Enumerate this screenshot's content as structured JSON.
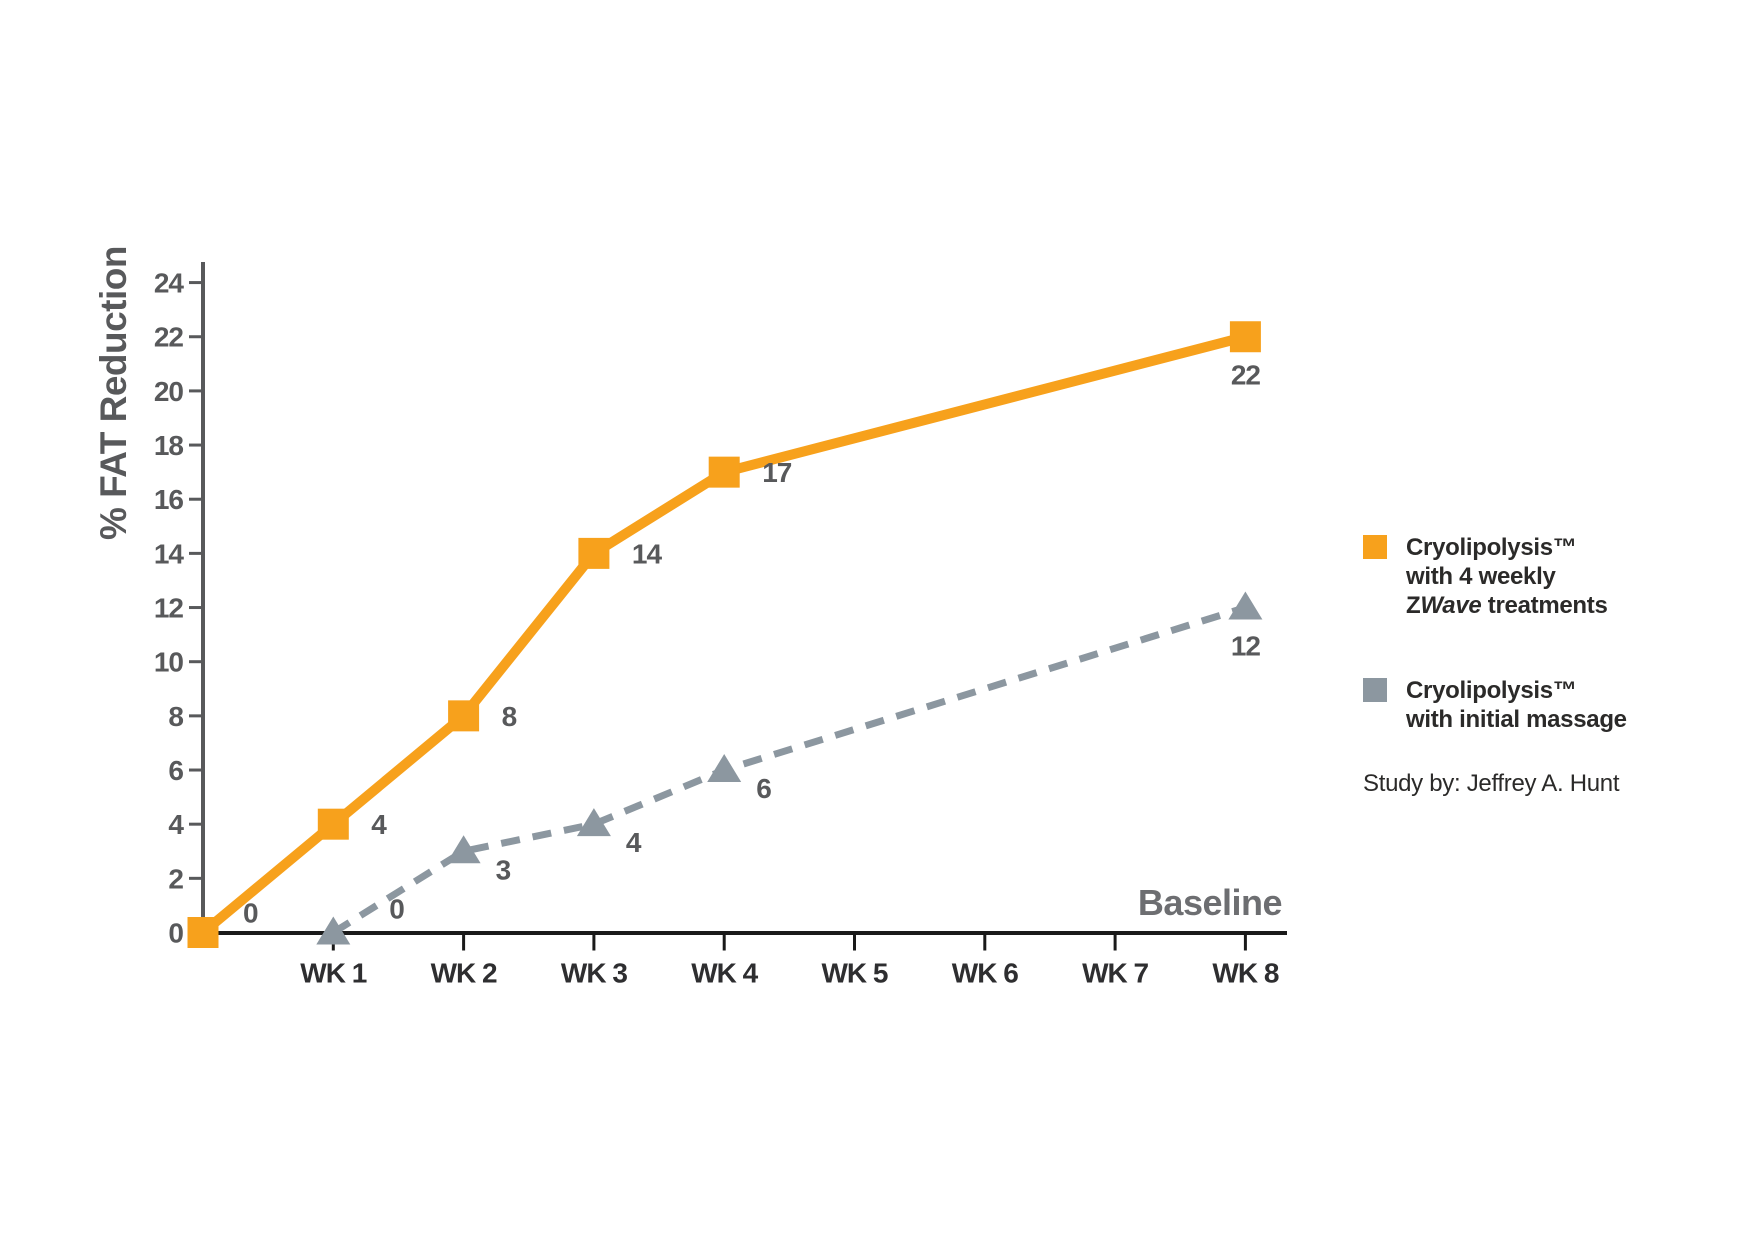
{
  "chart_data": {
    "type": "line",
    "ylabel": "% FAT Reduction",
    "baseline_label": "Baseline",
    "x_tick_labels": [
      "WK 1",
      "WK 2",
      "WK 3",
      "WK 4",
      "WK 5",
      "WK 6",
      "WK 7",
      "WK 8"
    ],
    "y_ticks": [
      0,
      2,
      4,
      6,
      8,
      10,
      12,
      14,
      16,
      18,
      20,
      22,
      24
    ],
    "ylim": [
      0,
      24
    ],
    "grid": false,
    "legend_position": "right",
    "series": [
      {
        "name": "Cryolipolysis with 4 weekly ZWave treatments",
        "color": "#f7a11c",
        "marker": "square",
        "dashed": false,
        "line_width": 10,
        "points": [
          {
            "week": 0,
            "value": 0,
            "label": "0",
            "label_pos": "above-right"
          },
          {
            "week": 1,
            "value": 4,
            "label": "4",
            "label_pos": "right"
          },
          {
            "week": 2,
            "value": 8,
            "label": "8",
            "label_pos": "right"
          },
          {
            "week": 3,
            "value": 14,
            "label": "14",
            "label_pos": "right"
          },
          {
            "week": 4,
            "value": 17,
            "label": "17",
            "label_pos": "right"
          },
          {
            "week": 8,
            "value": 22,
            "label": "22",
            "label_pos": "below"
          }
        ]
      },
      {
        "name": "Cryolipolysis with initial massage",
        "color": "#8c97a0",
        "marker": "triangle",
        "dashed": true,
        "line_width": 7,
        "points": [
          {
            "week": 1,
            "value": 0,
            "label": "0",
            "label_pos": "above-right-far"
          },
          {
            "week": 2,
            "value": 3,
            "label": "3",
            "label_pos": "below-right"
          },
          {
            "week": 3,
            "value": 4,
            "label": "4",
            "label_pos": "below-right"
          },
          {
            "week": 4,
            "value": 6,
            "label": "6",
            "label_pos": "below-right"
          },
          {
            "week": 8,
            "value": 12,
            "label": "12",
            "label_pos": "below"
          }
        ]
      }
    ],
    "colors": {
      "orange": "#f7a11c",
      "gray": "#8c97a0",
      "axis_y": "#58595b",
      "axis_x": "#1a1a1a",
      "tick_label_y": "#58595b",
      "tick_label_x": "#2e2e30",
      "point_label": "#58595b"
    }
  },
  "axis": {
    "ylabel": "% FAT Reduction",
    "baseline_label": "Baseline"
  },
  "legend": {
    "item1": {
      "line1": "Cryolipolysis™",
      "line2": "with 4 weekly",
      "line3_prefix": "Z",
      "line3_italic": "Wave",
      "line3_suffix": " treatments",
      "color": "#f7a11c"
    },
    "item2": {
      "line1": "Cryolipolysis™",
      "line2": "with initial massage",
      "color": "#8c97a0"
    },
    "study": "Study by: Jeffrey A. Hunt"
  }
}
